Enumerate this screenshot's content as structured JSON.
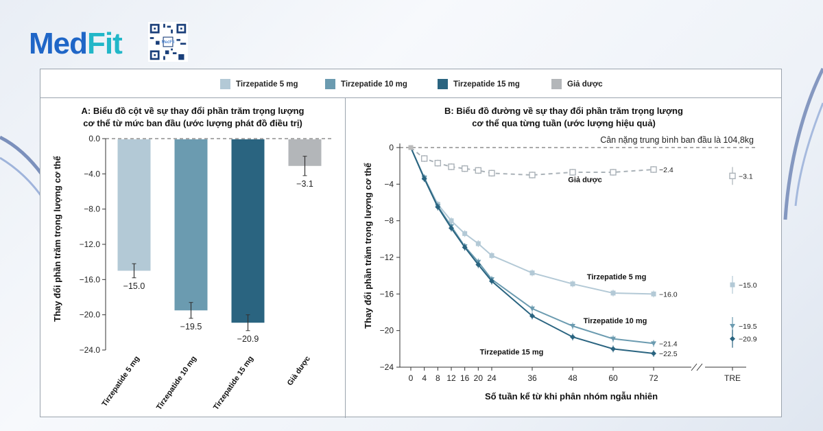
{
  "brand": {
    "name": "MedFit",
    "name_main": "Med",
    "name_accent": "Fit",
    "qr_label": "MedFit"
  },
  "colors": {
    "t5": "#b3c9d6",
    "t10": "#6b9bb0",
    "t15": "#2a6480",
    "placebo": "#b3b6b9"
  },
  "legend": [
    {
      "label": "Tirzepatide 5 mg",
      "color": "#b3c9d6"
    },
    {
      "label": "Tirzepatide 10 mg",
      "color": "#6b9bb0"
    },
    {
      "label": "Tirzepatide 15 mg",
      "color": "#2a6480"
    },
    {
      "label": "Giả dược",
      "color": "#b3b6b9"
    }
  ],
  "chart_data": [
    {
      "type": "bar",
      "title_line1": "A: Biểu đồ cột về sự thay đổi phần trăm trọng lượng",
      "title_line2": "cơ thể từ mức ban đầu (ước lượng phát đồ điều trị)",
      "ylabel": "Thay đổi phần trăm trọng lượng cơ thể",
      "ylim": [
        -24,
        0
      ],
      "yticks": [
        0,
        -4,
        -8,
        -12,
        -16,
        -20,
        -24
      ],
      "ytick_labels": [
        "0.0",
        "−4.0",
        "−8.0",
        "−12.0",
        "−16.0",
        "−20.0",
        "−24.0"
      ],
      "categories": [
        "Tirzepatide 5 mg",
        "Tirzepatide 10 mg",
        "Tirzepatide 15 mg",
        "Giả dược"
      ],
      "values": [
        -15.0,
        -19.5,
        -20.9,
        -3.1
      ],
      "value_labels": [
        "−15.0",
        "−19.5",
        "−20.9",
        "−3.1"
      ],
      "errors": [
        0.8,
        0.9,
        0.9,
        1.1
      ],
      "colors": [
        "#b3c9d6",
        "#6b9bb0",
        "#2a6480",
        "#b3b6b9"
      ]
    },
    {
      "type": "line",
      "title_line1": "B: Biểu đồ đường về sự thay đổi phần trăm trọng lượng",
      "title_line2": "cơ thể qua từng tuần (ước lượng hiệu quả)",
      "note": "Cân nặng trung bình ban đầu là 104,8kg",
      "xlabel": "Số tuần kể từ khi phân nhóm ngẫu nhiên",
      "ylabel": "Thay đổi phần trăm trọng lượng cơ thể",
      "ylim": [
        -24,
        0
      ],
      "yticks": [
        0,
        -4,
        -8,
        -12,
        -16,
        -20,
        -24
      ],
      "ytick_labels": [
        "0",
        "−4",
        "−8",
        "−12",
        "−16",
        "−20",
        "−24"
      ],
      "x": [
        0,
        4,
        8,
        12,
        16,
        20,
        24,
        36,
        48,
        60,
        72
      ],
      "x_labels": [
        "0",
        "4",
        "8",
        "12",
        "16",
        "20",
        "24",
        "36",
        "48",
        "60",
        "72"
      ],
      "tre_label": "TRE",
      "series": [
        {
          "name": "Giả dược",
          "label": "Giả dược",
          "values": [
            0,
            -1.2,
            -1.7,
            -2.1,
            -2.3,
            -2.5,
            -2.8,
            -3.0,
            -2.7,
            -2.7,
            -2.4
          ],
          "end_label": "−2.4",
          "tre_value": -3.1,
          "tre_label": "−3.1"
        },
        {
          "name": "Tirzepatide 5 mg",
          "label": "Tirzepatide 5 mg",
          "values": [
            0,
            -3.3,
            -6.2,
            -8.0,
            -9.4,
            -10.5,
            -11.8,
            -13.7,
            -14.9,
            -15.9,
            -16.0
          ],
          "end_label": "−16.0",
          "tre_value": -15.0,
          "tre_label": "−15.0"
        },
        {
          "name": "Tirzepatide 10 mg",
          "label": "Tirzepatide 10 mg",
          "values": [
            0,
            -3.3,
            -6.4,
            -8.6,
            -10.8,
            -12.5,
            -14.4,
            -17.6,
            -19.5,
            -20.9,
            -21.4
          ],
          "end_label": "−21.4",
          "tre_value": -19.5,
          "tre_label": "−19.5"
        },
        {
          "name": "Tirzepatide 15 mg",
          "label": "Tirzepatide 15 mg",
          "values": [
            0,
            -3.4,
            -6.5,
            -8.8,
            -10.9,
            -12.8,
            -14.6,
            -18.4,
            -20.7,
            -22.0,
            -22.5
          ],
          "end_label": "−22.5",
          "tre_value": -20.9,
          "tre_label": "−20.9"
        }
      ]
    }
  ]
}
